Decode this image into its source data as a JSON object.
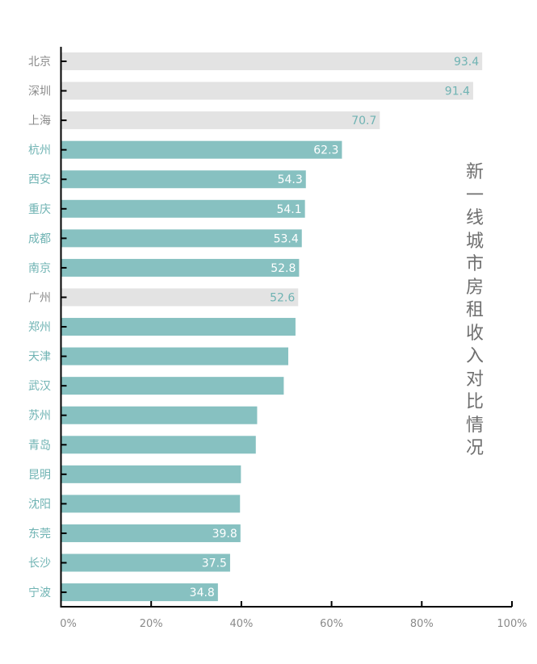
{
  "chart_data": {
    "type": "bar",
    "orientation": "horizontal",
    "title": "新一线城市房租收入对比情况",
    "categories": [
      "北京",
      "深圳",
      "上海",
      "杭州",
      "西安",
      "重庆",
      "成都",
      "南京",
      "广州",
      "郑州",
      "天津",
      "武汉",
      "苏州",
      "青岛",
      "昆明",
      "沈阳",
      "东莞",
      "长沙",
      "宁波"
    ],
    "values": [
      93.4,
      91.4,
      70.7,
      62.3,
      54.3,
      54.1,
      53.4,
      52.8,
      52.6,
      52.0,
      50.4,
      49.4,
      43.5,
      43.2,
      39.9,
      39.7,
      39.8,
      37.5,
      34.8
    ],
    "value_labels": [
      "93.4",
      "91.4",
      "70.7",
      "62.3",
      "54.3",
      "54.1",
      "53.4",
      "52.8",
      "52.6",
      "",
      "",
      "",
      "",
      "",
      "",
      "",
      "39.8",
      "37.5",
      "34.8"
    ],
    "highlight": [
      true,
      true,
      true,
      false,
      false,
      false,
      false,
      false,
      true,
      false,
      false,
      false,
      false,
      false,
      false,
      false,
      false,
      false,
      false
    ],
    "xlim": [
      0,
      100
    ],
    "xticks": [
      "0%",
      "20%",
      "40%",
      "60%",
      "80%",
      "100%"
    ],
    "xlabel": "",
    "ylabel": "",
    "grid": false,
    "colors": {
      "bar": "#87c1c1",
      "highlight_bar": "#e3e3e3",
      "teal_text": "#6fb3b3",
      "gray_text": "#8a8a8a"
    }
  }
}
